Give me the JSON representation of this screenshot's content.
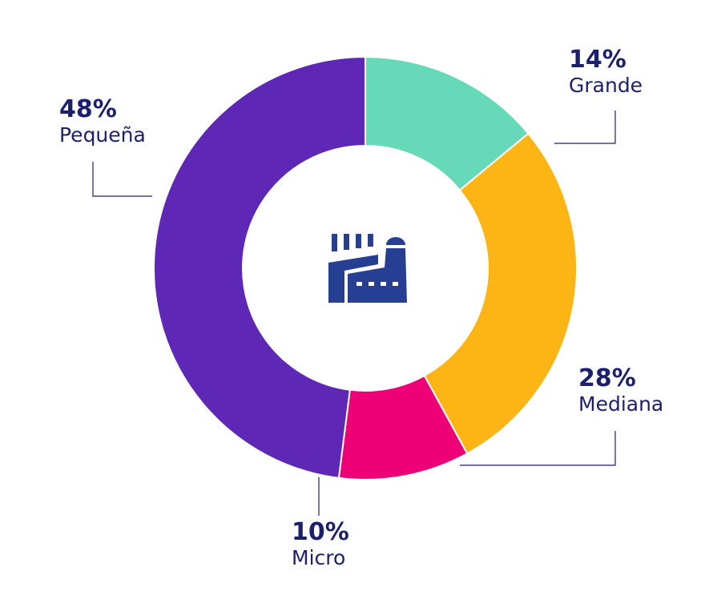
{
  "chart_data": {
    "type": "pie",
    "variant": "donut",
    "categories": [
      "Grande",
      "Mediana",
      "Micro",
      "Pequeña"
    ],
    "values": [
      14,
      28,
      10,
      48
    ],
    "labels": [
      "14%",
      "28%",
      "10%",
      "48%"
    ],
    "colors": [
      "#66d9b8",
      "#fdb515",
      "#ee0077",
      "#5e27b5"
    ],
    "start": "top",
    "direction": "clockwise",
    "center_icon": "factory-icon",
    "text_color": "#1c1f6e",
    "icon_color": "#263f93"
  }
}
